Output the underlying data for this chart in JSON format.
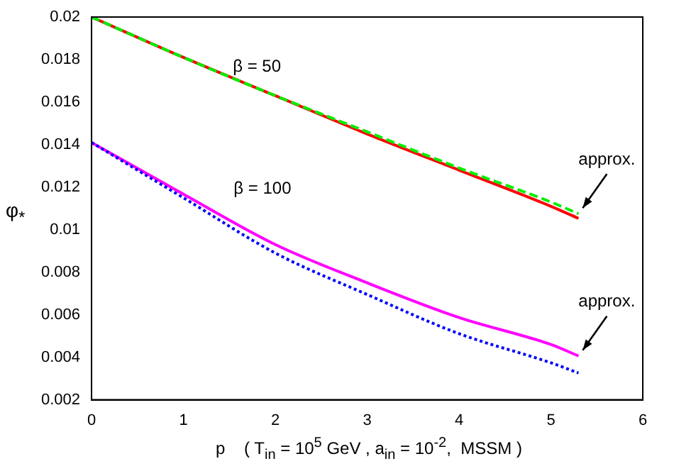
{
  "chart_data": {
    "type": "line",
    "xlabel": "p    ( T$_{in}$ = 10$^{5}$ GeV , a$_{in}$ = 10$^{-2}$,  MSSM )",
    "ylabel": "φ$_{*}$",
    "x": [
      0,
      1,
      2,
      3,
      4,
      5,
      5.3
    ],
    "series": [
      {
        "color": "#ff0000",
        "line_style": "solid",
        "values": [
          0.02,
          0.0181,
          0.0163,
          0.0145,
          0.0128,
          0.0111,
          0.01053
        ]
      },
      {
        "color": "#00ee00",
        "line_style": "dashed",
        "values": [
          0.02,
          0.0181,
          0.0163,
          0.0146,
          0.0129,
          0.0113,
          0.01075
        ]
      },
      {
        "color": "#ff00ff",
        "line_style": "solid",
        "values": [
          0.0141,
          0.01167,
          0.0093,
          0.0075,
          0.00587,
          0.0046,
          0.00406
        ]
      },
      {
        "color": "#0000ff",
        "line_style": "dotted",
        "values": [
          0.0141,
          0.0115,
          0.0089,
          0.00695,
          0.00511,
          0.00374,
          0.00326
        ]
      }
    ],
    "annotations": [
      "β = 50",
      "β = 100",
      {
        "text": "approx.",
        "x": 5.3,
        "y": 0.01075
      },
      {
        "text": "approx.",
        "x": 5.3,
        "y": 0.00406
      }
    ],
    "xlim": [
      0,
      6
    ],
    "xticks": [
      0,
      1,
      2,
      3,
      4,
      5,
      6
    ],
    "ylim": [
      0.002,
      0.02
    ],
    "yticks": [
      0.002,
      0.004,
      0.006,
      0.008,
      0.01,
      0.012,
      0.014,
      0.016,
      0.018,
      0.02
    ],
    "grid": false,
    "legend": false,
    "marker": "none"
  }
}
